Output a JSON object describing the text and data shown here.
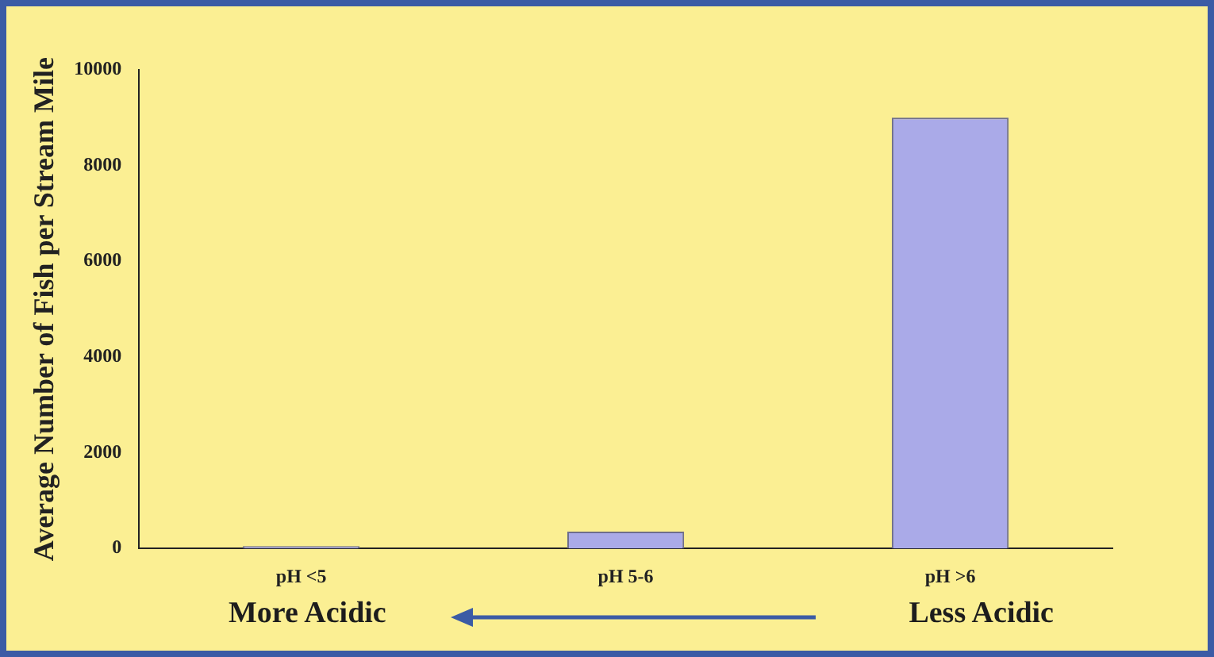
{
  "chart_data": {
    "type": "bar",
    "ylabel": "Average Number of Fish per Stream Mile",
    "categories": [
      "pH <5",
      "pH 5-6",
      "pH >6"
    ],
    "values": [
      50,
      350,
      9000
    ],
    "color": "#aaaae8",
    "ylim": [
      0,
      10000
    ],
    "yticks": [
      0,
      2000,
      4000,
      6000,
      8000,
      10000
    ],
    "grid": false,
    "legend": false,
    "annotations": [
      "More Acidic",
      "Less Acidic"
    ]
  }
}
